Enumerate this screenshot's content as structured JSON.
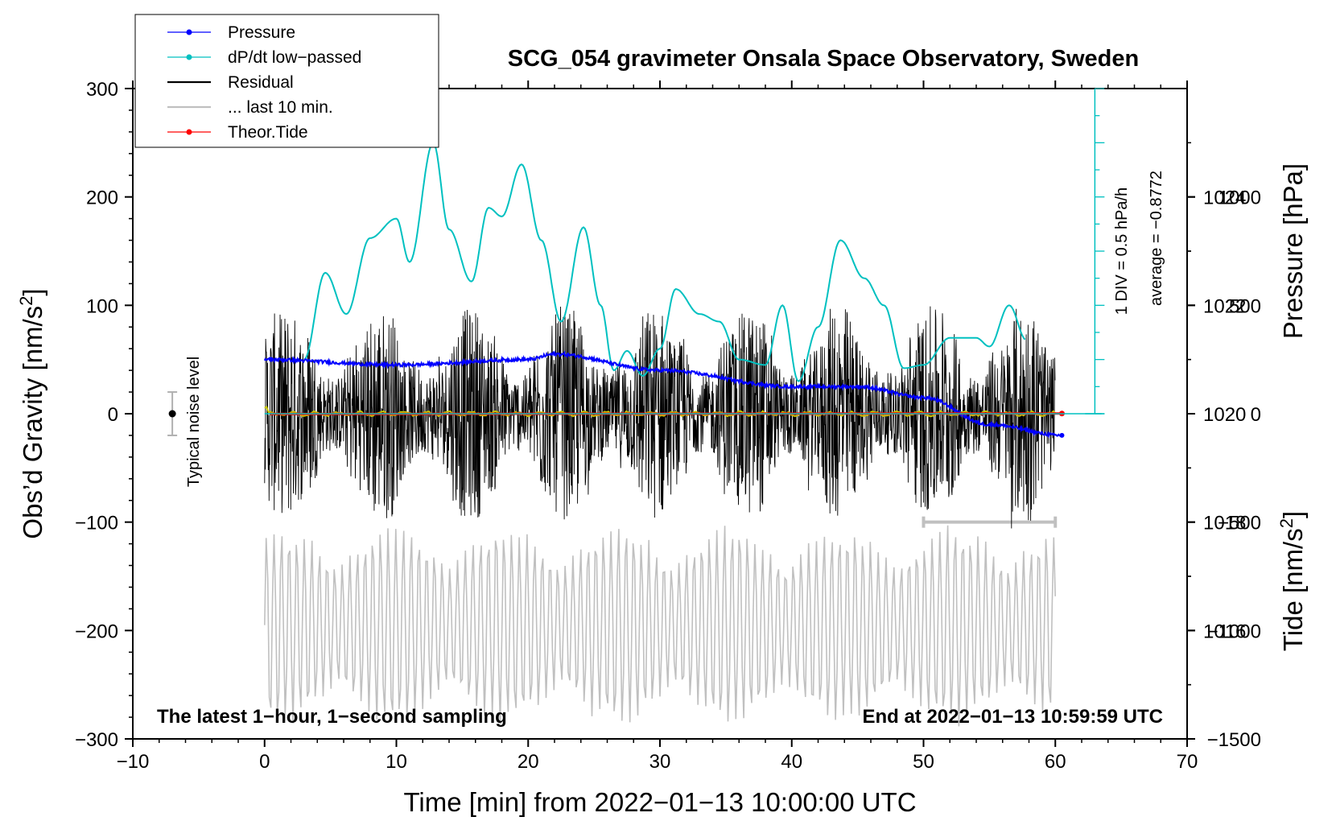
{
  "chart_data": {
    "type": "line",
    "title": "SCG_054 gravimeter Onsala Space Observatory, Sweden",
    "xlabel": "Time [min] from 2022−01−13 10:00:00 UTC",
    "ylabel_main": "Obs’d Gravity [nm/s",
    "ylabel_main_sup": "2",
    "ylabel_main_close": "]",
    "ylabel_pressure": "Pressure [hPa]",
    "ylabel_tide": "Tide [nm/s",
    "ylabel_tide_sup": "2",
    "ylabel_tide_close": "]",
    "xlim": [
      -10,
      70
    ],
    "ylim_gravity": [
      -300,
      300
    ],
    "ylim_pressure": [
      1014,
      1026
    ],
    "ylim_tide": [
      -1500,
      1500
    ],
    "x_ticks": [
      "−10",
      "0",
      "10",
      "20",
      "30",
      "40",
      "50",
      "60",
      "70"
    ],
    "y_ticks_gravity": [
      "300",
      "200",
      "100",
      "0",
      "−100",
      "−200",
      "−300"
    ],
    "y_ticks_pressure": [
      "1024",
      "1022",
      "1020",
      "1018",
      "1016"
    ],
    "y_ticks_tide": [
      "1000",
      "500",
      "0",
      "−500",
      "−1000",
      "−1500"
    ],
    "legend": [
      {
        "label": "Pressure",
        "color": "#0000ff",
        "style": "line-dot"
      },
      {
        "label": "dP/dt low−passed",
        "color": "#00c0c0",
        "style": "line-dot"
      },
      {
        "label": "Residual",
        "color": "#000000",
        "style": "line"
      },
      {
        "label": "... last 10 min.",
        "color": "#c0c0c0",
        "style": "line"
      },
      {
        "label": "Theor.Tide",
        "color": "#ff0000",
        "style": "line-dot"
      }
    ],
    "series": [
      {
        "name": "Pressure",
        "unit": "hPa",
        "x": [
          0,
          10,
          20,
          22,
          30,
          40,
          45,
          50,
          55,
          60.5
        ],
        "values": [
          1021.0,
          1020.9,
          1021.0,
          1021.1,
          1020.8,
          1020.5,
          1020.5,
          1020.3,
          1019.8,
          1019.6
        ]
      },
      {
        "name": "dP/dt low−passed",
        "unit": "nm/s2",
        "x": [
          3,
          4.6,
          6.2,
          8,
          10,
          11,
          12.8,
          14,
          15.7,
          17,
          18,
          19.5,
          21,
          22.5,
          24.2,
          25.5,
          26.5,
          27.5,
          28.7,
          30,
          31.2,
          33,
          34.5,
          36,
          38,
          39.3,
          40.5,
          42,
          43.7,
          45.5,
          47,
          48.5,
          50,
          52,
          54,
          55,
          56.5,
          57.8
        ],
        "values": [
          50,
          130,
          92,
          162,
          180,
          140,
          250,
          170,
          122,
          190,
          182,
          230,
          160,
          85,
          172,
          100,
          40,
          58,
          35,
          60,
          115,
          92,
          85,
          50,
          45,
          100,
          30,
          80,
          160,
          125,
          100,
          42,
          45,
          70,
          70,
          62,
          100,
          68
        ]
      },
      {
        "name": "Residual",
        "unit": "nm/s2",
        "x": [
          0,
          60
        ],
        "values": [
          0,
          0
        ],
        "band": [
          -100,
          100
        ]
      },
      {
        "name": "... last 10 min.",
        "unit": "nm/s2",
        "x": [
          0,
          60
        ],
        "values": [
          -150,
          -150
        ],
        "band": [
          -290,
          -100
        ]
      },
      {
        "name": "Theor.Tide",
        "unit": "nm/s2",
        "x": [
          0,
          30,
          60.5
        ],
        "values": [
          -1,
          0,
          1
        ]
      }
    ],
    "pressure_reference": 1020,
    "pressure_scale_label": "1 DIV = 0.5 hPa/h",
    "pressure_average_label": "average = −0.8772",
    "noise_label": "Typical noise level",
    "noise_range": [
      -20,
      20
    ],
    "last10_bar_x": [
      50,
      60
    ],
    "footer_left": "The latest 1−hour, 1−second sampling",
    "footer_right": "End at 2022−01−13 10:59:59 UTC"
  }
}
